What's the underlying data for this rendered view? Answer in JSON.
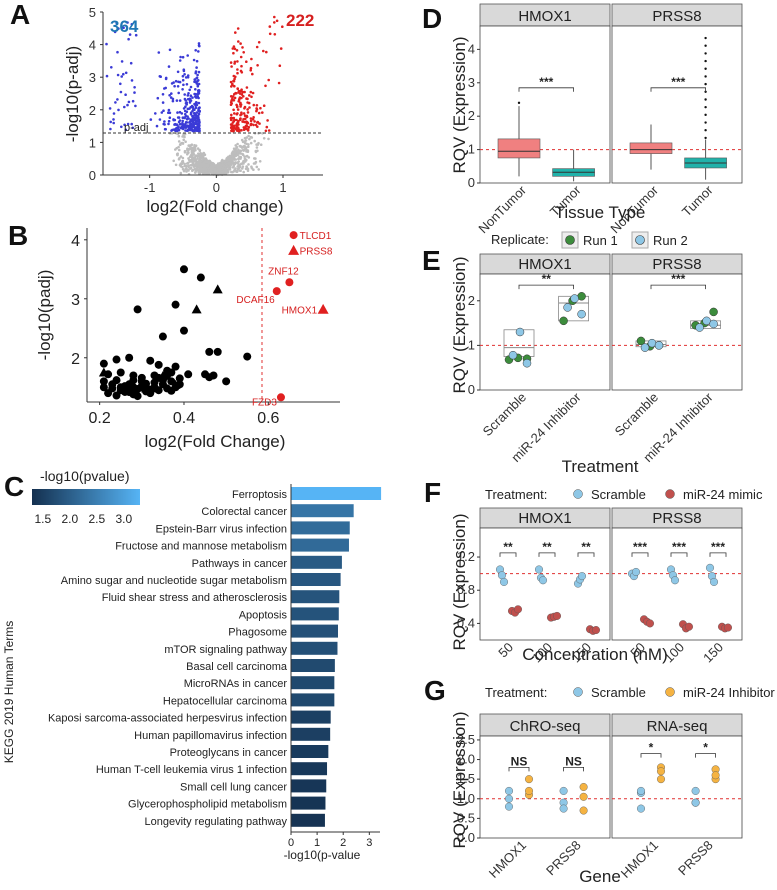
{
  "panels": {
    "A": {
      "label": "A",
      "ylabel": "-log10(p-adj)",
      "xlabel": "log2(Fold change)",
      "down_count": "364",
      "up_count": "222",
      "threshold_label": "p-adj",
      "xticks": [
        "-1",
        "0",
        "1"
      ],
      "yticks": [
        "0",
        "1",
        "2",
        "3",
        "4",
        "5"
      ]
    },
    "B": {
      "label": "B",
      "ylabel": "-log10(padj)",
      "xlabel": "log2(Fold Change)",
      "xticks": [
        "0.2",
        "0.4",
        "0.6"
      ],
      "yticks": [
        "2",
        "3",
        "4"
      ]
    },
    "C": {
      "label": "C",
      "legend_title": "-log10(pvalue)",
      "legend_ticks": [
        "1.5",
        "2.0",
        "2.5",
        "3.0"
      ],
      "ylabel": "KEGG 2019 Human Terms",
      "xlabel": "-log10(p-value",
      "xticks": [
        "0",
        "1",
        "2",
        "3"
      ]
    },
    "D": {
      "label": "D",
      "ylabel": "RQV (Expression)",
      "xlabel": "Tissue Type",
      "facets": [
        "HMOX1",
        "PRSS8"
      ],
      "groups": [
        "NonTumor",
        "Tumor"
      ],
      "sig": [
        "***",
        "***"
      ],
      "yticks": [
        "0",
        "1",
        "2",
        "3",
        "4"
      ]
    },
    "E": {
      "label": "E",
      "legend_title": "Replicate:",
      "legend_items": [
        "Run 1",
        "Run 2"
      ],
      "ylabel": "RQV (Expression)",
      "xlabel": "Treatment",
      "facets": [
        "HMOX1",
        "PRSS8"
      ],
      "groups": [
        "Scramble",
        "miR-24 Inhibitor"
      ],
      "sig": [
        "**",
        "***"
      ],
      "yticks": [
        "0",
        "1",
        "2"
      ]
    },
    "F": {
      "label": "F",
      "legend_title": "Treatment:",
      "legend_items": [
        "Scramble",
        "miR-24 mimic"
      ],
      "ylabel": "RQV (Expression)",
      "xlabel": "Concentration (nM)",
      "facets": [
        "HMOX1",
        "PRSS8"
      ],
      "groups": [
        "50",
        "100",
        "150"
      ],
      "sig": [
        "**",
        "**",
        "**",
        "***",
        "***",
        "***"
      ],
      "yticks": [
        "0.4",
        "0.8",
        "1.2"
      ]
    },
    "G": {
      "label": "G",
      "legend_title": "Treatment:",
      "legend_items": [
        "Scramble",
        "miR-24 Inhibitor"
      ],
      "ylabel": "RQV (Expression)",
      "xlabel": "Gene",
      "facets": [
        "ChRO-seq",
        "RNA-seq"
      ],
      "groups": [
        "HMOX1",
        "PRSS8"
      ],
      "sig": [
        "NS",
        "NS",
        "*",
        "*"
      ],
      "yticks": [
        "0.0",
        "0.5",
        "1.0",
        "1.5",
        "2.0",
        "2.5"
      ]
    }
  },
  "colors": {
    "down": "#3b3bd6",
    "up": "#e02020",
    "ns": "#bdbdbd",
    "nontumor": "#f08080",
    "tumor": "#20b2aa",
    "run1": "#3c8c3c",
    "run2": "#8ec7e6",
    "scramble": "#8ec7e6",
    "mimic": "#c0504d",
    "inhibitor": "#f5b342",
    "bar_low": "#14304f",
    "bar_high": "#56b4f5"
  },
  "chart_data": [
    {
      "panel": "A",
      "type": "scatter",
      "title": "",
      "xlabel": "log2(Fold change)",
      "ylabel": "-log10(p-adj)",
      "xlim": [
        -1.7,
        1.6
      ],
      "ylim": [
        0,
        5
      ],
      "threshold_y": 1.3,
      "series": [
        {
          "name": "",
          "count": 364,
          "color": "down"
        },
        {
          "name": "",
          "count": 222,
          "color": "up"
        }
      ]
    },
    {
      "panel": "B",
      "type": "scatter",
      "xlabel": "log2(Fold Change)",
      "ylabel": "-log10(padj)",
      "xlim": [
        0.17,
        0.77
      ],
      "ylim": [
        1.25,
        4.2
      ],
      "threshold_x": 0.585,
      "labeled": [
        {
          "gene": "TLCD1",
          "x": 0.66,
          "y": 4.08,
          "shape": "circle"
        },
        {
          "gene": "PRSS8",
          "x": 0.66,
          "y": 3.82,
          "shape": "triangle"
        },
        {
          "gene": "ZNF12",
          "x": 0.65,
          "y": 3.28,
          "shape": "circle"
        },
        {
          "gene": "DCAF16",
          "x": 0.62,
          "y": 3.13,
          "shape": "circle"
        },
        {
          "gene": "HMOX1",
          "x": 0.73,
          "y": 2.82,
          "shape": "triangle"
        },
        {
          "gene": "FZD3",
          "x": 0.63,
          "y": 1.33,
          "shape": "circle"
        }
      ],
      "points": [
        [
          0.4,
          3.5
        ],
        [
          0.44,
          3.36
        ],
        [
          0.29,
          2.82
        ],
        [
          0.38,
          2.9
        ],
        [
          0.4,
          2.46
        ],
        [
          0.35,
          2.36
        ],
        [
          0.46,
          2.1
        ],
        [
          0.48,
          2.1
        ],
        [
          0.55,
          2.02
        ],
        [
          0.21,
          1.9
        ],
        [
          0.24,
          1.97
        ],
        [
          0.27,
          2.0
        ],
        [
          0.32,
          1.95
        ],
        [
          0.34,
          1.88
        ],
        [
          0.36,
          1.78
        ],
        [
          0.38,
          1.85
        ],
        [
          0.22,
          1.72
        ],
        [
          0.25,
          1.75
        ],
        [
          0.28,
          1.7
        ],
        [
          0.3,
          1.66
        ],
        [
          0.33,
          1.7
        ],
        [
          0.37,
          1.6
        ],
        [
          0.39,
          1.55
        ],
        [
          0.45,
          1.72
        ],
        [
          0.46,
          1.67
        ],
        [
          0.47,
          1.7
        ],
        [
          0.5,
          1.6
        ],
        [
          0.21,
          1.5
        ],
        [
          0.23,
          1.55
        ],
        [
          0.25,
          1.45
        ],
        [
          0.26,
          1.52
        ],
        [
          0.27,
          1.42
        ],
        [
          0.28,
          1.38
        ],
        [
          0.29,
          1.47
        ],
        [
          0.3,
          1.52
        ],
        [
          0.31,
          1.43
        ],
        [
          0.32,
          1.4
        ],
        [
          0.33,
          1.5
        ],
        [
          0.34,
          1.45
        ],
        [
          0.35,
          1.55
        ],
        [
          0.36,
          1.48
        ],
        [
          0.37,
          1.44
        ],
        [
          0.38,
          1.5
        ],
        [
          0.22,
          1.4
        ],
        [
          0.24,
          1.36
        ],
        [
          0.26,
          1.48
        ],
        [
          0.27,
          1.55
        ],
        [
          0.3,
          1.6
        ],
        [
          0.33,
          1.58
        ],
        [
          0.35,
          1.62
        ],
        [
          0.36,
          1.7
        ],
        [
          0.21,
          1.6
        ],
        [
          0.24,
          1.62
        ],
        [
          0.28,
          1.62
        ],
        [
          0.31,
          1.56
        ],
        [
          0.34,
          1.66
        ],
        [
          0.37,
          1.75
        ],
        [
          0.39,
          1.65
        ],
        [
          0.41,
          1.72
        ],
        [
          0.29,
          1.35
        ],
        [
          0.32,
          1.46
        ],
        [
          0.25,
          1.5
        ],
        [
          0.23,
          1.48
        ],
        [
          0.26,
          1.42
        ],
        [
          0.28,
          1.5
        ]
      ],
      "triangles": [
        [
          0.48,
          3.16
        ],
        [
          0.43,
          2.82
        ],
        [
          0.21,
          1.75
        ],
        [
          0.35,
          1.69
        ],
        [
          0.38,
          1.54
        ],
        [
          0.27,
          1.53
        ],
        [
          0.3,
          1.5
        ],
        [
          0.33,
          1.48
        ],
        [
          0.31,
          1.48
        ]
      ]
    },
    {
      "panel": "C",
      "type": "bar",
      "orientation": "horizontal",
      "xlabel": "-log10(p-value",
      "ylabel": "KEGG 2019 Human Terms",
      "xlim": [
        0,
        3.6
      ],
      "categories": [
        "Ferroptosis",
        "Colorectal cancer",
        "Epstein-Barr virus infection",
        "Fructose and mannose metabolism",
        "Pathways in cancer",
        "Amino sugar and nucleotide sugar metabolism",
        "Fluid shear stress and atherosclerosis",
        "Apoptosis",
        "Phagosome",
        "mTOR signaling pathway",
        "Basal cell carcinoma",
        "MicroRNAs in cancer",
        "Hepatocellular carcinoma",
        "Kaposi sarcoma-associated herpesvirus infection",
        "Human papillomavirus infection",
        "Proteoglycans in cancer",
        "Human T-cell leukemia virus 1 infection",
        "Small cell lung cancer",
        "Glycerophospholipid metabolism",
        "Longevity regulating pathway"
      ],
      "values": [
        3.45,
        2.4,
        2.25,
        2.22,
        1.95,
        1.9,
        1.85,
        1.83,
        1.8,
        1.78,
        1.68,
        1.66,
        1.66,
        1.52,
        1.5,
        1.43,
        1.38,
        1.35,
        1.32,
        1.3
      ]
    },
    {
      "panel": "D",
      "type": "box",
      "ylim": [
        0,
        4.7
      ],
      "facets": [
        {
          "name": "HMOX1",
          "boxes": [
            {
              "group": "NonTumor",
              "q1": 0.75,
              "median": 0.95,
              "q3": 1.32,
              "low": 0.2,
              "high": 2.3,
              "color": "nontumor"
            },
            {
              "group": "Tumor",
              "q1": 0.2,
              "median": 0.32,
              "q3": 0.43,
              "low": 0.05,
              "high": 1.0,
              "color": "tumor"
            }
          ]
        },
        {
          "name": "PRSS8",
          "boxes": [
            {
              "group": "NonTumor",
              "q1": 0.88,
              "median": 1.0,
              "q3": 1.2,
              "low": 0.4,
              "high": 1.75,
              "color": "nontumor"
            },
            {
              "group": "Tumor",
              "q1": 0.45,
              "median": 0.6,
              "q3": 0.75,
              "low": 0.1,
              "high": 1.3,
              "color": "tumor"
            }
          ]
        }
      ]
    },
    {
      "panel": "E",
      "type": "box",
      "ylim": [
        0,
        2.6
      ],
      "facets": [
        {
          "name": "HMOX1",
          "boxes": [
            {
              "group": "Scramble",
              "q1": 0.75,
              "median": 0.95,
              "q3": 1.35,
              "run1": [
                0.68,
                0.72,
                0.7
              ],
              "run2": [
                0.78,
                1.3,
                0.6
              ]
            },
            {
              "group": "miR-24 Inhibitor",
              "q1": 1.55,
              "median": 1.95,
              "q3": 2.1,
              "run1": [
                1.55,
                2.0,
                2.1
              ],
              "run2": [
                1.85,
                2.05,
                1.7
              ]
            }
          ]
        },
        {
          "name": "PRSS8",
          "boxes": [
            {
              "group": "Scramble",
              "q1": 0.97,
              "median": 1.02,
              "q3": 1.1,
              "run1": [
                1.1,
                0.98,
                1.0
              ],
              "run2": [
                0.95,
                1.05,
                1.0
              ]
            },
            {
              "group": "miR-24 Inhibitor",
              "q1": 1.38,
              "median": 1.45,
              "q3": 1.55,
              "run1": [
                1.45,
                1.5,
                1.75
              ],
              "run2": [
                1.4,
                1.55,
                1.48
              ]
            }
          ]
        }
      ]
    },
    {
      "panel": "F",
      "type": "scatter",
      "ylim": [
        0.2,
        1.55
      ],
      "facets": [
        {
          "name": "HMOX1",
          "scramble": [
            [
              1.05,
              0.98,
              0.9
            ],
            [
              1.05,
              0.95,
              0.92
            ],
            [
              0.88,
              0.93,
              0.97
            ]
          ],
          "mimic": [
            [
              0.55,
              0.53,
              0.57
            ],
            [
              0.47,
              0.48,
              0.49
            ],
            [
              0.33,
              0.31,
              0.32
            ]
          ]
        },
        {
          "name": "PRSS8",
          "scramble": [
            [
              1.0,
              0.97,
              1.02
            ],
            [
              1.05,
              0.98,
              0.92
            ],
            [
              1.07,
              0.97,
              0.9
            ]
          ],
          "mimic": [
            [
              0.45,
              0.42,
              0.4
            ],
            [
              0.39,
              0.34,
              0.36
            ],
            [
              0.36,
              0.34,
              0.35
            ]
          ]
        }
      ]
    },
    {
      "panel": "G",
      "type": "scatter",
      "ylim": [
        0,
        2.6
      ],
      "facets": [
        {
          "name": "ChRO-seq",
          "scramble": [
            [
              1.0,
              0.8,
              1.2
            ],
            [
              1.2,
              0.9,
              0.75
            ]
          ],
          "inhibitor": [
            [
              1.5,
              1.1,
              1.2
            ],
            [
              1.3,
              1.05,
              0.7
            ]
          ]
        },
        {
          "name": "RNA-seq",
          "scramble": [
            [
              1.15,
              0.75,
              1.2
            ],
            [
              1.2,
              0.9,
              0.9
            ]
          ],
          "inhibitor": [
            [
              1.8,
              1.5,
              1.7
            ],
            [
              1.75,
              1.5,
              1.6
            ]
          ]
        }
      ]
    }
  ]
}
